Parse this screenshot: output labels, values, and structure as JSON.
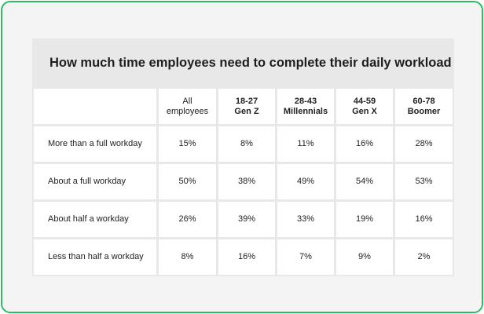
{
  "title": "How much time employees need to complete their daily workload",
  "table": {
    "header": [
      [
        "All",
        "employees"
      ],
      [
        "18-27",
        "Gen Z"
      ],
      [
        "28-43",
        "Millennials"
      ],
      [
        "44-59",
        "Gen X"
      ],
      [
        "60-78",
        "Boomer"
      ]
    ],
    "rows": [
      [
        "More than a full workday",
        "15%",
        "8%",
        "11%",
        "16%",
        "28%"
      ],
      [
        "About a full workday",
        "50%",
        "38%",
        "49%",
        "54%",
        "53%"
      ],
      [
        "About half a workday",
        "26%",
        "39%",
        "33%",
        "19%",
        "16%"
      ],
      [
        "Less than half a workday",
        "8%",
        "16%",
        "7%",
        "9%",
        "2%"
      ]
    ]
  }
}
